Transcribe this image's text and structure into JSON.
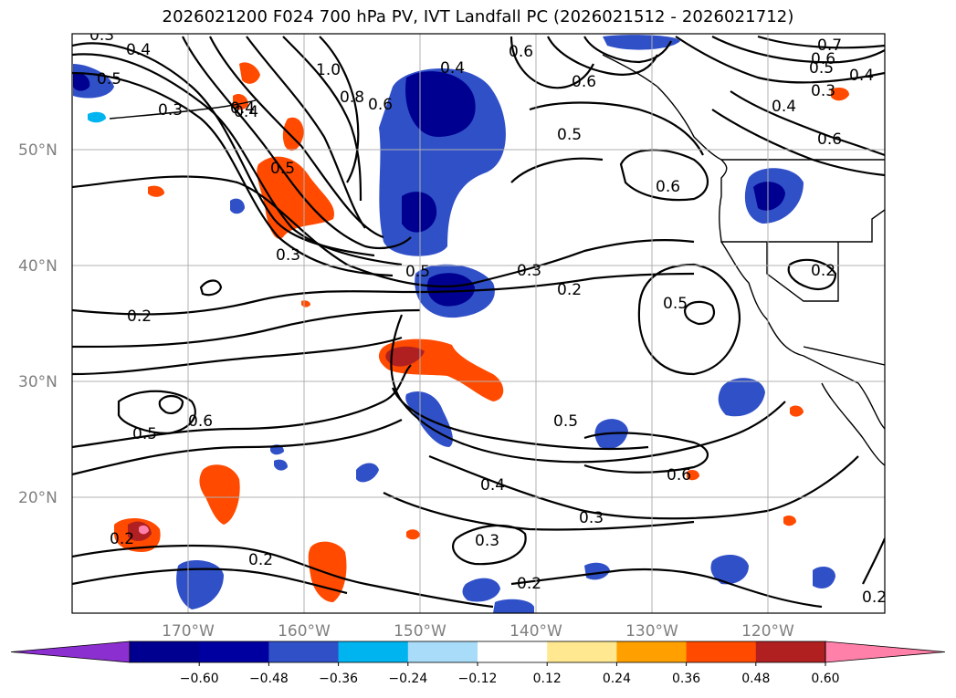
{
  "title": "2026021200 F024 700 hPa PV, IVT Landfall PC (2026021512 - 2026021712)",
  "lat_labels": [
    "50°N",
    "40°N",
    "30°N",
    "20°N"
  ],
  "lon_labels": [
    "170°W",
    "160°W",
    "150°W",
    "140°W",
    "130°W",
    "120°W"
  ],
  "contour_labels": [
    "0.3",
    "0.4",
    "0.5",
    "0.4",
    "0.3",
    "1.0",
    "0.8",
    "0.6",
    "0.4",
    "0.6",
    "0.6",
    "0.7",
    "0.6",
    "0.5",
    "0.4",
    "0.3",
    "0.4",
    "0.6",
    "0.5",
    "0.6",
    "0.5",
    "0.4",
    "0.3",
    "0.5",
    "0.3",
    "0.2",
    "0.2",
    "0.5",
    "0.2",
    "0.6",
    "0.5",
    "0.5",
    "0.4",
    "0.6",
    "0.3",
    "0.2",
    "0.3",
    "0.2",
    "0.2",
    "0.2"
  ],
  "colorbar": {
    "ticks": [
      "−0.60",
      "−0.48",
      "−0.36",
      "−0.24",
      "−0.12",
      "0.12",
      "0.24",
      "0.36",
      "0.48",
      "0.60"
    ],
    "colors": [
      "#8B2FD0",
      "#000090",
      "#0000A0",
      "#3050C8",
      "#00B4F0",
      "#A8DCF8",
      "#FFFFFF",
      "#FFE890",
      "#FFA000",
      "#FF4A00",
      "#B02020",
      "#FF80A8"
    ]
  }
}
